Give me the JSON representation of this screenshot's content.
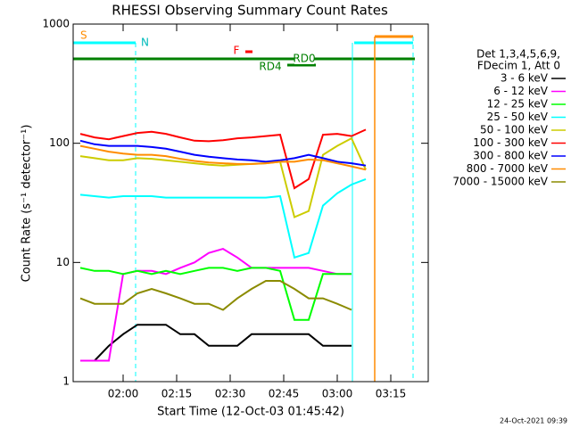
{
  "chart_data": {
    "type": "line",
    "log_y": true,
    "title": "RHESSI Observing Summary Count Rates",
    "x_label": "Start Time (12-Oct-03 01:45:42)",
    "y_label": "Count Rate (s⁻¹ detector⁻¹)",
    "timestamp": "24-Oct-2021 09:39",
    "legend_header": [
      "Det 1,3,4,5,6,9,",
      "FDecim 1, Att 0"
    ],
    "annotations": [
      "S",
      "N",
      "F",
      "RD0",
      "RD4"
    ],
    "x": [
      108,
      112,
      116,
      120,
      124,
      128,
      132,
      136,
      140,
      144,
      148,
      152,
      156,
      160,
      164,
      168,
      172,
      176,
      180,
      184,
      188,
      192
    ],
    "xlim": [
      106,
      205.5
    ],
    "xticks": [
      {
        "value": 120,
        "label": "02:00"
      },
      {
        "value": 135,
        "label": "02:15"
      },
      {
        "value": 150,
        "label": "02:30"
      },
      {
        "value": 165,
        "label": "02:45"
      },
      {
        "value": 180,
        "label": "03:00"
      },
      {
        "value": 195,
        "label": "03:15"
      }
    ],
    "ylim": [
      1,
      1000
    ],
    "yticks": [
      1,
      10,
      100,
      1000
    ],
    "series": [
      {
        "name": "3 - 6 keV",
        "color": "#000000",
        "values": [
          null,
          1.5,
          2,
          2.5,
          3,
          3,
          3,
          2.5,
          2.5,
          2,
          2,
          2,
          2.5,
          2.5,
          2.5,
          2.5,
          2.5,
          2,
          2,
          2,
          null,
          null
        ]
      },
      {
        "name": "6 - 12 keV",
        "color": "#ff00ff",
        "values": [
          1.5,
          1.5,
          1.5,
          8,
          8.5,
          8.5,
          8,
          9,
          10,
          12,
          13,
          11,
          9,
          9,
          9,
          9,
          9,
          8.5,
          8,
          8,
          null,
          null
        ]
      },
      {
        "name": "12 - 25 keV",
        "color": "#00ff00",
        "values": [
          9,
          8.5,
          8.5,
          8,
          8.5,
          8,
          8.5,
          8,
          8.5,
          9,
          9,
          8.5,
          9,
          9,
          8.5,
          3.3,
          3.3,
          8,
          8,
          8,
          null,
          null
        ]
      },
      {
        "name": "25 - 50 keV",
        "color": "#00ffff",
        "values": [
          37,
          36,
          35,
          36,
          36,
          36,
          35,
          35,
          35,
          35,
          35,
          35,
          35,
          35,
          36,
          11,
          12,
          30,
          38,
          45,
          50,
          null
        ]
      },
      {
        "name": "50 - 100 keV",
        "color": "#cccc00",
        "values": [
          78,
          75,
          72,
          72,
          75,
          74,
          72,
          70,
          68,
          66,
          65,
          66,
          67,
          68,
          70,
          24,
          27,
          80,
          95,
          110,
          60,
          null
        ]
      },
      {
        "name": "100 - 300 keV",
        "color": "#ff0000",
        "values": [
          120,
          112,
          108,
          115,
          122,
          125,
          120,
          112,
          105,
          104,
          106,
          110,
          112,
          115,
          118,
          42,
          50,
          118,
          120,
          115,
          130,
          null
        ]
      },
      {
        "name": "300 - 800 keV",
        "color": "#0000ff",
        "values": [
          105,
          98,
          95,
          95,
          95,
          93,
          90,
          85,
          80,
          77,
          75,
          73,
          72,
          70,
          72,
          75,
          80,
          75,
          70,
          68,
          65,
          null
        ]
      },
      {
        "name": "800 - 7000 keV",
        "color": "#ff8c00",
        "values": [
          95,
          90,
          85,
          82,
          80,
          80,
          78,
          74,
          71,
          69,
          68,
          67,
          67,
          68,
          70,
          70,
          73,
          72,
          68,
          64,
          60,
          null
        ]
      },
      {
        "name": "7000 - 15000 keV",
        "color": "#8b8b00",
        "values": [
          5,
          4.5,
          4.5,
          4.5,
          5.5,
          6,
          5.5,
          5,
          4.5,
          4.5,
          4,
          5,
          6,
          7,
          7,
          6,
          5,
          5,
          4.5,
          4,
          null,
          null
        ]
      }
    ]
  }
}
